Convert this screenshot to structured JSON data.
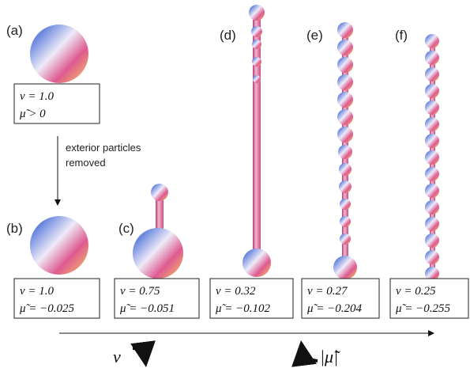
{
  "panels": [
    {
      "label": "(a)",
      "v": "v = 1.0",
      "mu": "μ̃ > 0"
    },
    {
      "label": "(b)",
      "v": "v = 1.0",
      "mu": "μ̃ = −0.025"
    },
    {
      "label": "(c)",
      "v": "v = 0.75",
      "mu": "μ̃ = −0.051"
    },
    {
      "label": "(d)",
      "v": "v = 0.32",
      "mu": "μ̃ = −0.102"
    },
    {
      "label": "(e)",
      "v": "v = 0.27",
      "mu": "μ̃ = −0.204"
    },
    {
      "label": "(f)",
      "v": "v = 0.25",
      "mu": "μ̃ = −0.255"
    }
  ],
  "arrow_note": [
    "exterior particles",
    "removed"
  ],
  "axis": {
    "v": "v",
    "mu": "|μ̃|"
  }
}
